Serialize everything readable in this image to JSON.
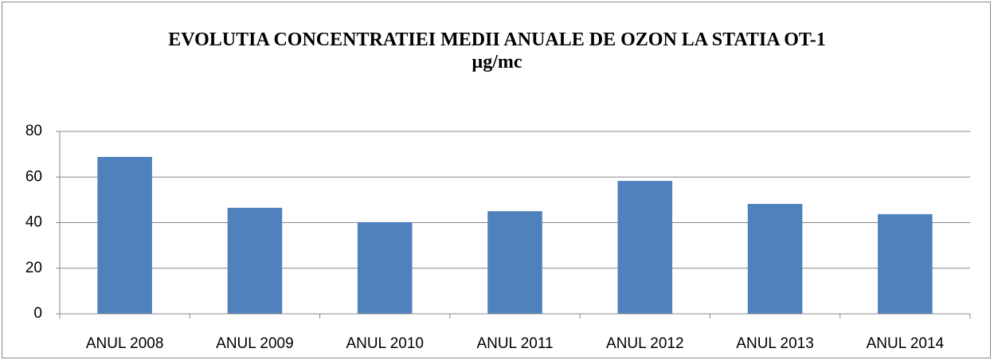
{
  "chart_data": {
    "type": "bar",
    "title": "EVOLUTIA CONCENTRATIEI MEDII ANUALE DE OZON LA STATIA OT-1",
    "subtitle": "µg/mc",
    "categories": [
      "ANUL 2008",
      "ANUL 2009",
      "ANUL 2010",
      "ANUL 2011",
      "ANUL 2012",
      "ANUL 2013",
      "ANUL 2014"
    ],
    "values": [
      68.8,
      46.5,
      40.2,
      45,
      58.3,
      48.2,
      43.7
    ],
    "color": "#4f81bd",
    "ylim": [
      0,
      80
    ],
    "yticks": [
      0,
      20,
      40,
      60,
      80
    ],
    "grid": true
  }
}
